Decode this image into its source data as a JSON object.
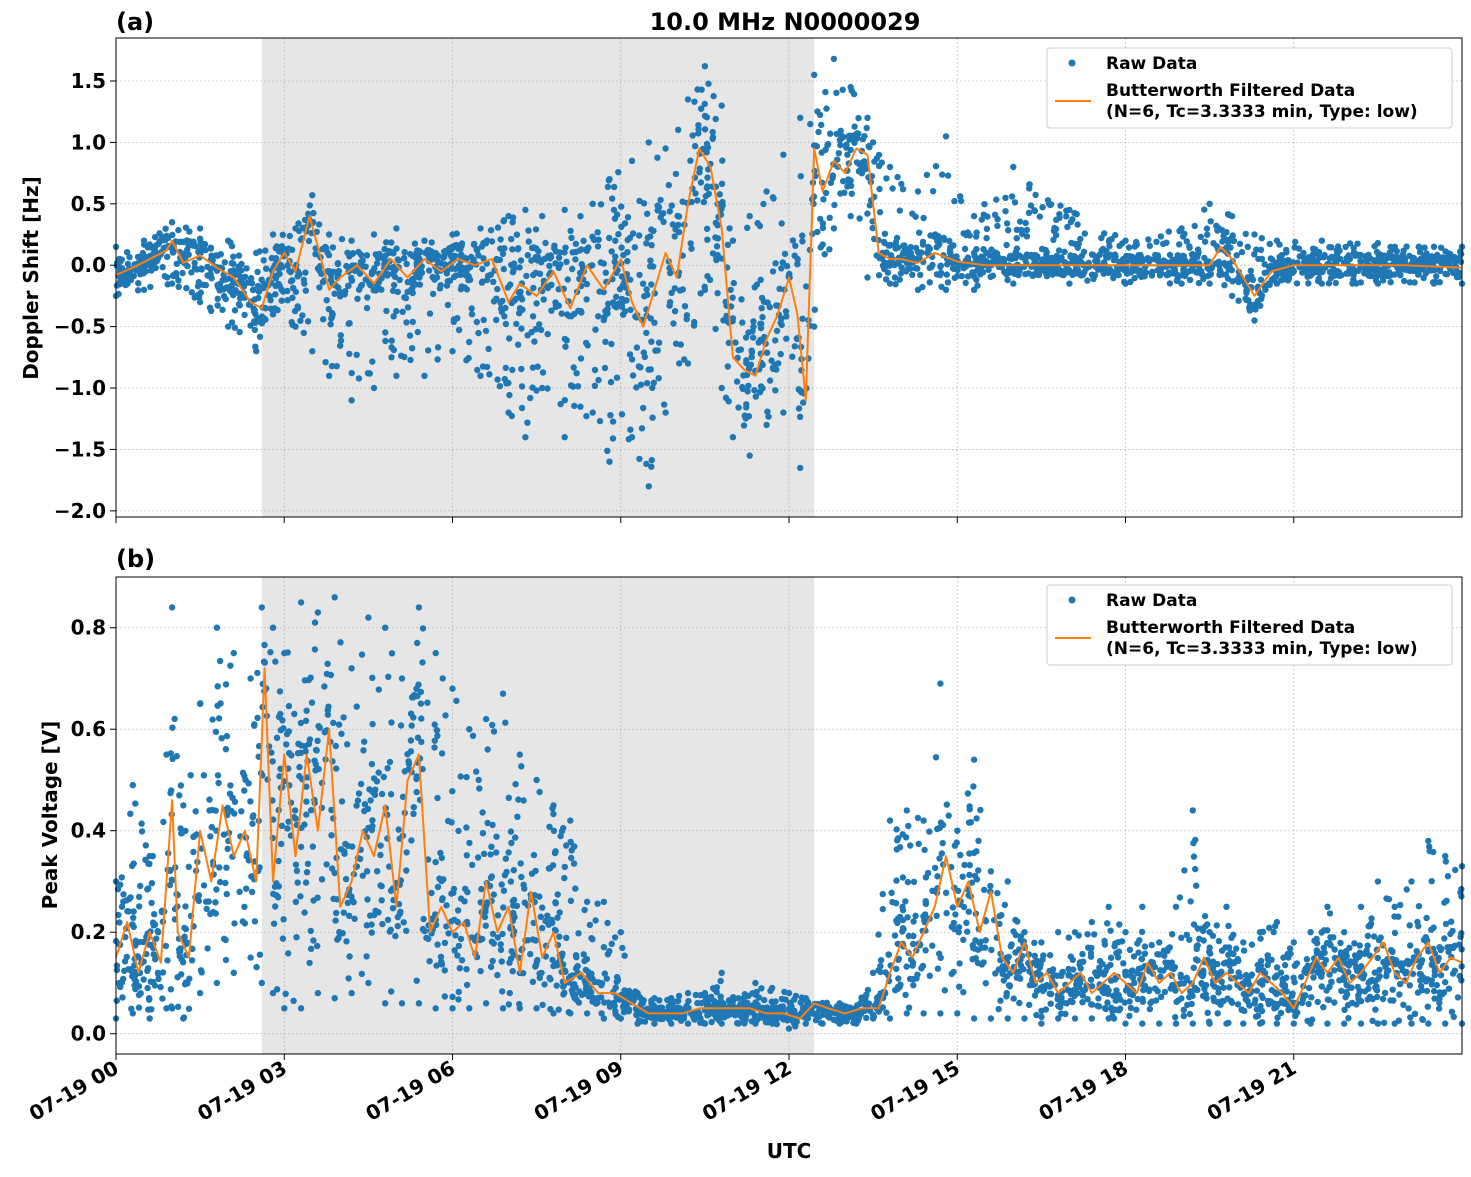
{
  "figure_title": "10.0 MHz N0000029",
  "x_axis_label": "UTC",
  "x_tick_labels": [
    "07-19 00",
    "07-19 03",
    "07-19 06",
    "07-19 09",
    "07-19 12",
    "07-19 15",
    "07-19 18",
    "07-19 21"
  ],
  "legend": {
    "raw_label": "Raw Data",
    "filtered_line1": "Butterworth Filtered Data",
    "filtered_line2": "(N=6, Tc=3.3333 min, Type: low)"
  },
  "colors": {
    "raw": "#1f77b4",
    "filtered": "#ff7f0e",
    "shade": "#e6e6e6",
    "grid": "#b0b0b0"
  },
  "chart_data": [
    {
      "type": "scatter",
      "panel_label": "(a)",
      "ylabel": "Doppler Shift [Hz]",
      "x_unit": "hours UTC, 07-19",
      "xlim": [
        0,
        24
      ],
      "ylim": [
        -2.05,
        1.85
      ],
      "yticks": [
        -2.0,
        -1.5,
        -1.0,
        -0.5,
        0.0,
        0.5,
        1.0,
        1.5
      ],
      "ytick_labels": [
        "−2.0",
        "−1.5",
        "−1.0",
        "−0.5",
        "0.0",
        "0.5",
        "1.0",
        "1.5"
      ],
      "grid": true,
      "legend_position": "top-right",
      "shaded_interval": [
        2.6,
        12.45
      ],
      "series": [
        {
          "name": "Raw Data",
          "kind": "scatter",
          "envelope_x": [
            0,
            0.5,
            1.0,
            1.5,
            2.0,
            2.5,
            2.8,
            3.2,
            3.5,
            3.8,
            4.2,
            4.6,
            5.0,
            5.5,
            6.0,
            6.5,
            7.0,
            7.3,
            7.6,
            8.0,
            8.5,
            8.8,
            9.2,
            9.5,
            9.8,
            10.2,
            10.5,
            10.8,
            11.0,
            11.3,
            11.6,
            11.9,
            12.2,
            12.45,
            12.8,
            13.1,
            13.4,
            13.8,
            14.3,
            14.8,
            15.3,
            16.0,
            17.0,
            18.0,
            19.0,
            19.5,
            19.9,
            20.3,
            20.7,
            21.5,
            22.5,
            23.5,
            24.0
          ],
          "envelope_min": [
            -0.25,
            -0.2,
            -0.15,
            -0.3,
            -0.5,
            -0.7,
            -0.4,
            -0.5,
            -0.7,
            -0.9,
            -1.1,
            -1.0,
            -0.9,
            -0.9,
            -0.7,
            -0.9,
            -1.2,
            -1.4,
            -1.0,
            -1.4,
            -1.2,
            -1.6,
            -1.4,
            -1.8,
            -1.2,
            -0.8,
            -0.2,
            -1.0,
            -1.4,
            -1.55,
            -1.3,
            -1.2,
            -1.65,
            -0.5,
            0.3,
            0.4,
            -0.1,
            -0.15,
            -0.2,
            -0.2,
            -0.2,
            -0.15,
            -0.15,
            -0.15,
            -0.15,
            -0.15,
            -0.25,
            -0.45,
            -0.15,
            -0.15,
            -0.15,
            -0.15,
            -0.15
          ],
          "envelope_max": [
            0.15,
            0.2,
            0.35,
            0.3,
            0.2,
            0.1,
            0.25,
            0.3,
            0.57,
            0.25,
            0.2,
            0.25,
            0.3,
            0.2,
            0.25,
            0.3,
            0.4,
            0.45,
            0.4,
            0.45,
            0.5,
            0.7,
            0.85,
            1.0,
            0.95,
            1.35,
            1.62,
            1.3,
            0.2,
            0.4,
            0.6,
            0.9,
            1.2,
            1.55,
            1.68,
            1.45,
            1.2,
            0.8,
            0.6,
            1.05,
            0.4,
            0.8,
            0.45,
            0.2,
            0.3,
            0.5,
            0.4,
            0.25,
            0.2,
            0.2,
            0.18,
            0.15,
            0.15
          ],
          "color": "#1f77b4"
        },
        {
          "name": "Butterworth Filtered Data",
          "kind": "line",
          "x": [
            0,
            0.3,
            0.6,
            0.9,
            1.0,
            1.2,
            1.5,
            1.8,
            2.1,
            2.4,
            2.6,
            2.8,
            3.0,
            3.2,
            3.45,
            3.6,
            3.8,
            4.0,
            4.3,
            4.6,
            4.9,
            5.2,
            5.5,
            5.8,
            6.1,
            6.4,
            6.7,
            7.0,
            7.2,
            7.5,
            7.8,
            8.1,
            8.4,
            8.7,
            9.0,
            9.2,
            9.4,
            9.6,
            9.8,
            10.0,
            10.2,
            10.4,
            10.6,
            10.8,
            11.0,
            11.2,
            11.4,
            11.6,
            11.8,
            12.0,
            12.15,
            12.3,
            12.45,
            12.6,
            12.8,
            13.0,
            13.2,
            13.4,
            13.6,
            13.8,
            14.0,
            14.3,
            14.6,
            15.0,
            15.5,
            16.0,
            17.0,
            18.0,
            19.0,
            19.5,
            19.7,
            19.9,
            20.1,
            20.3,
            20.6,
            21.0,
            22.0,
            23.0,
            24.0
          ],
          "y": [
            -0.08,
            -0.02,
            0.05,
            0.12,
            0.2,
            0.02,
            0.08,
            -0.02,
            -0.1,
            -0.3,
            -0.35,
            -0.05,
            0.1,
            -0.05,
            0.4,
            0.15,
            -0.2,
            -0.1,
            0.0,
            -0.15,
            0.05,
            -0.1,
            0.05,
            -0.05,
            0.05,
            0.0,
            0.05,
            -0.3,
            -0.15,
            -0.25,
            -0.05,
            -0.35,
            0.0,
            -0.2,
            0.05,
            -0.3,
            -0.5,
            -0.2,
            0.1,
            -0.1,
            0.5,
            0.95,
            0.8,
            0.3,
            -0.75,
            -0.85,
            -0.9,
            -0.6,
            -0.4,
            -0.1,
            -0.4,
            -1.1,
            0.95,
            0.6,
            0.85,
            0.75,
            0.95,
            0.9,
            0.1,
            0.05,
            0.05,
            0.02,
            0.1,
            0.03,
            0.0,
            0.0,
            0.0,
            0.0,
            0.0,
            0.0,
            0.15,
            0.05,
            -0.1,
            -0.25,
            -0.05,
            0.0,
            0.0,
            0.0,
            -0.02
          ],
          "color": "#ff7f0e"
        }
      ]
    },
    {
      "type": "scatter",
      "panel_label": "(b)",
      "ylabel": "Peak Voltage [V]",
      "x_unit": "hours UTC, 07-19",
      "xlim": [
        0,
        24
      ],
      "ylim": [
        -0.04,
        0.9
      ],
      "yticks": [
        0.0,
        0.2,
        0.4,
        0.6,
        0.8
      ],
      "ytick_labels": [
        "0.0",
        "0.2",
        "0.4",
        "0.6",
        "0.8"
      ],
      "grid": true,
      "legend_position": "top-right",
      "shaded_interval": [
        2.6,
        12.45
      ],
      "series": [
        {
          "name": "Raw Data",
          "kind": "scatter",
          "envelope_x": [
            0,
            0.3,
            0.6,
            0.9,
            1.0,
            1.2,
            1.5,
            1.8,
            2.1,
            2.4,
            2.6,
            2.8,
            3.0,
            3.3,
            3.6,
            3.9,
            4.2,
            4.5,
            4.8,
            5.1,
            5.4,
            5.7,
            6.0,
            6.3,
            6.6,
            6.9,
            7.2,
            7.5,
            7.8,
            8.1,
            8.4,
            8.7,
            9.0,
            9.3,
            9.6,
            9.9,
            10.2,
            10.5,
            10.8,
            11.1,
            11.4,
            11.7,
            12.0,
            12.3,
            12.6,
            12.9,
            13.2,
            13.5,
            13.8,
            14.1,
            14.4,
            14.7,
            15.0,
            15.3,
            15.6,
            15.9,
            16.2,
            16.5,
            16.8,
            17.1,
            17.4,
            17.7,
            18.0,
            18.3,
            18.6,
            18.9,
            19.2,
            19.5,
            19.8,
            20.1,
            20.4,
            20.7,
            21.0,
            21.3,
            21.6,
            21.9,
            22.2,
            22.5,
            22.8,
            23.1,
            23.4,
            23.7,
            24.0
          ],
          "envelope_min": [
            0.03,
            0.04,
            0.03,
            0.05,
            0.05,
            0.03,
            0.08,
            0.1,
            0.12,
            0.15,
            0.1,
            0.08,
            0.05,
            0.05,
            0.08,
            0.07,
            0.08,
            0.1,
            0.06,
            0.06,
            0.06,
            0.05,
            0.05,
            0.05,
            0.06,
            0.05,
            0.05,
            0.05,
            0.04,
            0.04,
            0.04,
            0.03,
            0.03,
            0.02,
            0.02,
            0.02,
            0.02,
            0.02,
            0.02,
            0.02,
            0.02,
            0.02,
            0.01,
            0.02,
            0.02,
            0.02,
            0.02,
            0.03,
            0.03,
            0.04,
            0.04,
            0.04,
            0.04,
            0.03,
            0.03,
            0.03,
            0.03,
            0.02,
            0.03,
            0.03,
            0.03,
            0.03,
            0.02,
            0.02,
            0.02,
            0.02,
            0.02,
            0.02,
            0.02,
            0.02,
            0.02,
            0.02,
            0.02,
            0.02,
            0.02,
            0.02,
            0.02,
            0.02,
            0.02,
            0.02,
            0.02,
            0.02,
            0.02
          ],
          "envelope_max": [
            0.3,
            0.49,
            0.35,
            0.55,
            0.84,
            0.45,
            0.65,
            0.8,
            0.75,
            0.7,
            0.84,
            0.8,
            0.75,
            0.85,
            0.83,
            0.86,
            0.72,
            0.82,
            0.8,
            0.7,
            0.84,
            0.75,
            0.68,
            0.6,
            0.62,
            0.67,
            0.55,
            0.5,
            0.45,
            0.42,
            0.26,
            0.26,
            0.2,
            0.08,
            0.07,
            0.07,
            0.08,
            0.08,
            0.12,
            0.07,
            0.1,
            0.09,
            0.08,
            0.07,
            0.06,
            0.06,
            0.05,
            0.12,
            0.42,
            0.44,
            0.42,
            0.69,
            0.4,
            0.54,
            0.32,
            0.3,
            0.2,
            0.18,
            0.2,
            0.2,
            0.22,
            0.25,
            0.2,
            0.25,
            0.18,
            0.25,
            0.44,
            0.2,
            0.25,
            0.18,
            0.2,
            0.22,
            0.18,
            0.2,
            0.25,
            0.2,
            0.25,
            0.3,
            0.25,
            0.3,
            0.38,
            0.35,
            0.33
          ],
          "color": "#1f77b4"
        },
        {
          "name": "Butterworth Filtered Data",
          "kind": "line",
          "x": [
            0,
            0.2,
            0.4,
            0.6,
            0.8,
            1.0,
            1.1,
            1.3,
            1.5,
            1.7,
            1.9,
            2.1,
            2.3,
            2.5,
            2.65,
            2.8,
            3.0,
            3.2,
            3.4,
            3.6,
            3.8,
            4.0,
            4.2,
            4.4,
            4.6,
            4.8,
            5.0,
            5.2,
            5.4,
            5.6,
            5.8,
            6.0,
            6.2,
            6.4,
            6.6,
            6.8,
            7.0,
            7.2,
            7.4,
            7.6,
            7.8,
            8.0,
            8.3,
            8.6,
            8.9,
            9.2,
            9.5,
            9.8,
            10.1,
            10.4,
            10.7,
            11.0,
            11.3,
            11.6,
            11.9,
            12.2,
            12.45,
            12.7,
            13.0,
            13.3,
            13.6,
            13.8,
            14.0,
            14.2,
            14.4,
            14.6,
            14.8,
            15.0,
            15.2,
            15.4,
            15.6,
            15.8,
            16.0,
            16.2,
            16.4,
            16.6,
            16.8,
            17.0,
            17.2,
            17.4,
            17.6,
            17.8,
            18.0,
            18.2,
            18.4,
            18.6,
            18.8,
            19.0,
            19.2,
            19.4,
            19.6,
            19.8,
            20.0,
            20.2,
            20.4,
            20.6,
            20.8,
            21.0,
            21.2,
            21.4,
            21.6,
            21.8,
            22.0,
            22.2,
            22.4,
            22.6,
            22.8,
            23.0,
            23.2,
            23.4,
            23.6,
            23.8,
            24.0
          ],
          "y": [
            0.15,
            0.22,
            0.12,
            0.2,
            0.14,
            0.46,
            0.2,
            0.15,
            0.4,
            0.3,
            0.45,
            0.35,
            0.4,
            0.3,
            0.72,
            0.3,
            0.55,
            0.35,
            0.55,
            0.4,
            0.6,
            0.25,
            0.3,
            0.4,
            0.35,
            0.45,
            0.25,
            0.5,
            0.55,
            0.2,
            0.25,
            0.2,
            0.22,
            0.15,
            0.3,
            0.2,
            0.25,
            0.12,
            0.28,
            0.15,
            0.2,
            0.1,
            0.12,
            0.08,
            0.08,
            0.06,
            0.04,
            0.04,
            0.04,
            0.05,
            0.05,
            0.05,
            0.05,
            0.04,
            0.04,
            0.03,
            0.06,
            0.05,
            0.04,
            0.05,
            0.05,
            0.12,
            0.18,
            0.15,
            0.2,
            0.25,
            0.35,
            0.25,
            0.3,
            0.2,
            0.28,
            0.15,
            0.12,
            0.18,
            0.1,
            0.12,
            0.08,
            0.1,
            0.12,
            0.08,
            0.1,
            0.12,
            0.1,
            0.08,
            0.14,
            0.1,
            0.12,
            0.08,
            0.1,
            0.15,
            0.1,
            0.12,
            0.1,
            0.08,
            0.12,
            0.1,
            0.08,
            0.05,
            0.1,
            0.15,
            0.12,
            0.15,
            0.1,
            0.12,
            0.15,
            0.18,
            0.12,
            0.1,
            0.15,
            0.18,
            0.12,
            0.15,
            0.14
          ],
          "color": "#ff7f0e"
        }
      ]
    }
  ]
}
